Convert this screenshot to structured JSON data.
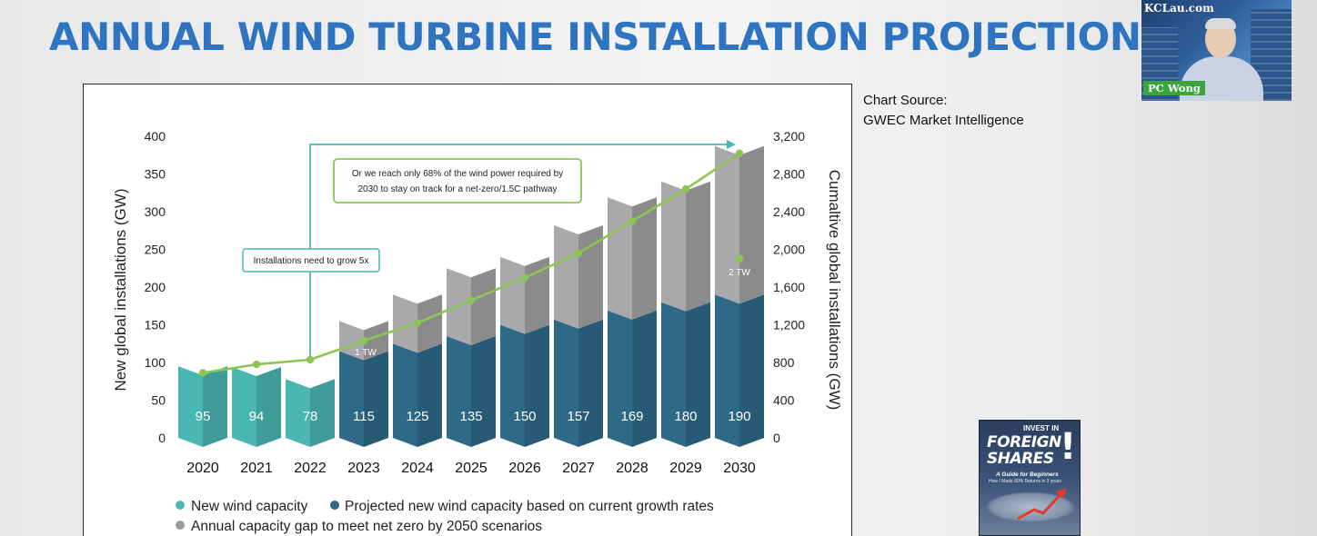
{
  "page": {
    "title": "ANNUAL WIND TURBINE INSTALLATION PROJECTION",
    "source_label": "Chart Source:",
    "source_value": "GWEC Market Intelligence"
  },
  "video": {
    "channel": "KCLau.com",
    "name": "PC Wong"
  },
  "book": {
    "kicker": "INVEST IN",
    "title_line1": "FOREIGN",
    "title_line2": "SHARES",
    "title_mark": "!",
    "subtitle": "A Guide for Beginners",
    "tagline": "How I Made 80% Returns in 3 years"
  },
  "colors": {
    "new_capacity": "#4bb7b3",
    "projected_capacity": "#2e6a88",
    "capacity_gap": "#a9a9ab",
    "cumulative_line": "#8dc456",
    "annotation_border": "#4bb7b3",
    "annotation_box_green": "#8dc456",
    "title": "#2e74c0"
  },
  "chart_data": {
    "type": "bar",
    "title": "",
    "ylabel": "New global installations (GW)",
    "y2label": "Cumaltive global installations (GW)",
    "ylim": [
      0,
      400
    ],
    "y2lim": [
      0,
      3200
    ],
    "yticks": [
      "0",
      "50",
      "100",
      "150",
      "200",
      "250",
      "300",
      "350",
      "400"
    ],
    "y2ticks": [
      "0",
      "400",
      "800",
      "1,200",
      "1,600",
      "2,000",
      "2,400",
      "2,800",
      "3,200"
    ],
    "categories": [
      "2020",
      "2021",
      "2022",
      "2023",
      "2024",
      "2025",
      "2026",
      "2027",
      "2028",
      "2029",
      "2030"
    ],
    "series": [
      {
        "name": "New wind capacity",
        "values": [
          95,
          94,
          78,
          null,
          null,
          null,
          null,
          null,
          null,
          null,
          null
        ]
      },
      {
        "name": "Projected new wind capacity based on current growth rates",
        "values": [
          null,
          null,
          null,
          115,
          125,
          135,
          150,
          157,
          169,
          180,
          190
        ]
      },
      {
        "name": "Annual capacity gap to meet net zero by 2050 scenarios",
        "values": [
          null,
          null,
          null,
          40,
          65,
          90,
          90,
          125,
          150,
          160,
          197
        ]
      }
    ],
    "bar_labels": [
      "95",
      "94",
      "78",
      "115",
      "125",
      "135",
      "150",
      "157",
      "169",
      "180",
      "190"
    ],
    "cumulative_line": {
      "values": [
        690,
        780,
        830,
        1030,
        1220,
        1460,
        1700,
        1960,
        2300,
        2640,
        3020
      ],
      "target_point": {
        "category": "2030",
        "value": 1900
      }
    },
    "annotations": [
      "Installations need to grow 5x",
      "Or we reach only 68% of the wind power required by",
      "2030 to stay on track for a net-zero/1.5C pathway",
      "1 TW",
      "2 TW"
    ],
    "legend": [
      "New wind capacity",
      "Projected new wind capacity based on current growth rates",
      "Annual capacity gap to meet net zero by 2050 scenarios"
    ],
    "legend_position": "bottom-left",
    "grid": false
  }
}
